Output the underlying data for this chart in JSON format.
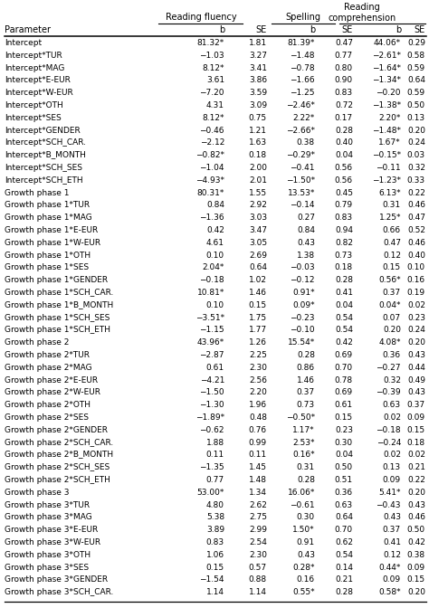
{
  "col_headers": [
    "Reading fluency",
    "Spelling",
    "Reading\ncomprehension"
  ],
  "sub_headers": [
    "b",
    "SE",
    "b",
    "SE",
    "b",
    "SE"
  ],
  "param_label": "Parameter",
  "rows": [
    [
      "Intercept",
      "81.32*",
      "1.81",
      "81.39*",
      "0.47",
      "44.06*",
      "0.29"
    ],
    [
      "Intercept*TUR",
      "−1.03",
      "3.27",
      "−1.48",
      "0.77",
      "−2.61*",
      "0.58"
    ],
    [
      "Intercept*MAG",
      "8.12*",
      "3.41",
      "−0.78",
      "0.80",
      "−1.64*",
      "0.59"
    ],
    [
      "Intercept*E-EUR",
      "3.61",
      "3.86",
      "−1.66",
      "0.90",
      "−1.34*",
      "0.64"
    ],
    [
      "Intercept*W-EUR",
      "−7.20",
      "3.59",
      "−1.25",
      "0.83",
      "−0.20",
      "0.59"
    ],
    [
      "Intercept*OTH",
      "4.31",
      "3.09",
      "−2.46*",
      "0.72",
      "−1.38*",
      "0.50"
    ],
    [
      "Intercept*SES",
      "8.12*",
      "0.75",
      "2.22*",
      "0.17",
      "2.20*",
      "0.13"
    ],
    [
      "Intercept*GENDER",
      "−0.46",
      "1.21",
      "−2.66*",
      "0.28",
      "−1.48*",
      "0.20"
    ],
    [
      "Intercept*SCH_CAR.",
      "−2.12",
      "1.63",
      "0.38",
      "0.40",
      "1.67*",
      "0.24"
    ],
    [
      "Intercept*B_MONTH",
      "−0.82*",
      "0.18",
      "−0.29*",
      "0.04",
      "−0.15*",
      "0.03"
    ],
    [
      "Intercept*SCH_SES",
      "−1.04",
      "2.00",
      "−0.41",
      "0.56",
      "−0.11",
      "0.32"
    ],
    [
      "Intercept*SCH_ETH",
      "−4.93*",
      "2.01",
      "−1.50*",
      "0.56",
      "−1.23*",
      "0.33"
    ],
    [
      "Growth phase 1",
      "80.31*",
      "1.55",
      "13.53*",
      "0.45",
      "6.13*",
      "0.22"
    ],
    [
      "Growth phase 1*TUR",
      "0.84",
      "2.92",
      "−0.14",
      "0.79",
      "0.31",
      "0.46"
    ],
    [
      "Growth phase 1*MAG",
      "−1.36",
      "3.03",
      "0.27",
      "0.83",
      "1.25*",
      "0.47"
    ],
    [
      "Growth phase 1*E-EUR",
      "0.42",
      "3.47",
      "0.84",
      "0.94",
      "0.66",
      "0.52"
    ],
    [
      "Growth phase 1*W-EUR",
      "4.61",
      "3.05",
      "0.43",
      "0.82",
      "0.47",
      "0.46"
    ],
    [
      "Growth phase 1*OTH",
      "0.10",
      "2.69",
      "1.38",
      "0.73",
      "0.12",
      "0.40"
    ],
    [
      "Growth phase 1*SES",
      "2.04*",
      "0.64",
      "−0.03",
      "0.18",
      "0.15",
      "0.10"
    ],
    [
      "Growth phase 1*GENDER",
      "−0.18",
      "1.02",
      "−0.12",
      "0.28",
      "0.56*",
      "0.16"
    ],
    [
      "Growth phase 1*SCH_CAR.",
      "10.81*",
      "1.46",
      "0.91*",
      "0.41",
      "0.37",
      "0.19"
    ],
    [
      "Growth phase 1*B_MONTH",
      "0.10",
      "0.15",
      "0.09*",
      "0.04",
      "0.04*",
      "0.02"
    ],
    [
      "Growth phase 1*SCH_SES",
      "−3.51*",
      "1.75",
      "−0.23",
      "0.54",
      "0.07",
      "0.23"
    ],
    [
      "Growth phase 1*SCH_ETH",
      "−1.15",
      "1.77",
      "−0.10",
      "0.54",
      "0.20",
      "0.24"
    ],
    [
      "Growth phase 2",
      "43.96*",
      "1.26",
      "15.54*",
      "0.42",
      "4.08*",
      "0.20"
    ],
    [
      "Growth phase 2*TUR",
      "−2.87",
      "2.25",
      "0.28",
      "0.69",
      "0.36",
      "0.43"
    ],
    [
      "Growth phase 2*MAG",
      "0.61",
      "2.30",
      "0.86",
      "0.70",
      "−0.27",
      "0.44"
    ],
    [
      "Growth phase 2*E-EUR",
      "−4.21",
      "2.56",
      "1.46",
      "0.78",
      "0.32",
      "0.49"
    ],
    [
      "Growth phase 2*W-EUR",
      "−1.50",
      "2.20",
      "0.37",
      "0.69",
      "−0.39",
      "0.43"
    ],
    [
      "Growth phase 2*OTH",
      "−1.30",
      "1.96",
      "0.73",
      "0.61",
      "0.63",
      "0.37"
    ],
    [
      "Growth phase 2*SES",
      "−1.89*",
      "0.48",
      "−0.50*",
      "0.15",
      "0.02",
      "0.09"
    ],
    [
      "Growth phase 2*GENDER",
      "−0.62",
      "0.76",
      "1.17*",
      "0.23",
      "−0.18",
      "0.15"
    ],
    [
      "Growth phase 2*SCH_CAR.",
      "1.88",
      "0.99",
      "2.53*",
      "0.30",
      "−0.24",
      "0.18"
    ],
    [
      "Growth phase 2*B_MONTH",
      "0.11",
      "0.11",
      "0.16*",
      "0.04",
      "0.02",
      "0.02"
    ],
    [
      "Growth phase 2*SCH_SES",
      "−1.35",
      "1.45",
      "0.31",
      "0.50",
      "0.13",
      "0.21"
    ],
    [
      "Growth phase 2*SCH_ETH",
      "0.77",
      "1.48",
      "0.28",
      "0.51",
      "0.09",
      "0.22"
    ],
    [
      "Growth phase 3",
      "53.00*",
      "1.34",
      "16.06*",
      "0.36",
      "5.41*",
      "0.20"
    ],
    [
      "Growth phase 3*TUR",
      "4.80",
      "2.62",
      "−0.61",
      "0.63",
      "−0.43",
      "0.43"
    ],
    [
      "Growth phase 3*MAG",
      "5.38",
      "2.75",
      "0.30",
      "0.64",
      "0.43",
      "0.46"
    ],
    [
      "Growth phase 3*E-EUR",
      "3.89",
      "2.99",
      "1.50*",
      "0.70",
      "0.37",
      "0.50"
    ],
    [
      "Growth phase 3*W-EUR",
      "0.83",
      "2.54",
      "0.91",
      "0.62",
      "0.41",
      "0.42"
    ],
    [
      "Growth phase 3*OTH",
      "1.06",
      "2.30",
      "0.43",
      "0.54",
      "0.12",
      "0.38"
    ],
    [
      "Growth phase 3*SES",
      "0.15",
      "0.57",
      "0.28*",
      "0.14",
      "0.44*",
      "0.09"
    ],
    [
      "Growth phase 3*GENDER",
      "−1.54",
      "0.88",
      "0.16",
      "0.21",
      "0.09",
      "0.15"
    ],
    [
      "Growth phase 3*SCH_CAR.",
      "1.14",
      "1.14",
      "0.55*",
      "0.28",
      "0.58*",
      "0.20"
    ]
  ],
  "background_color": "#ffffff",
  "text_color": "#000000",
  "font_size": 6.5,
  "header_font_size": 7.0
}
